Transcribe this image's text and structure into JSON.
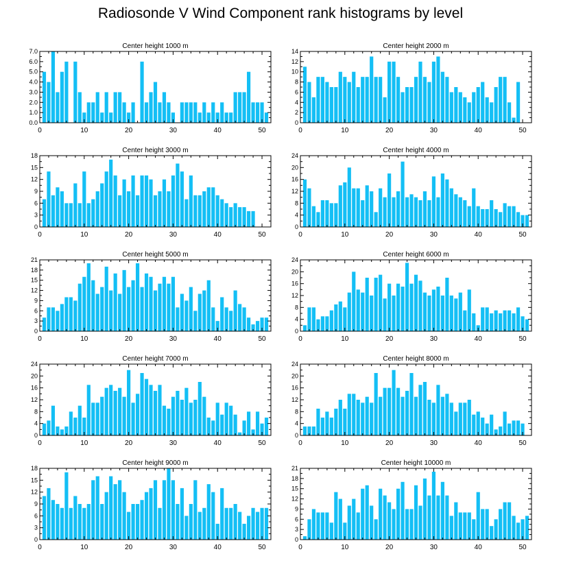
{
  "figure": {
    "title": "Radiosonde V Wind Component rank histograms by level",
    "bar_color": "#14BFF5"
  },
  "chart_data": [
    {
      "type": "bar",
      "title": "Center height 1000 m",
      "x": [
        1,
        2,
        3,
        4,
        5,
        6,
        7,
        8,
        9,
        10,
        11,
        12,
        13,
        14,
        15,
        16,
        17,
        18,
        19,
        20,
        21,
        22,
        23,
        24,
        25,
        26,
        27,
        28,
        29,
        30,
        31,
        32,
        33,
        34,
        35,
        36,
        37,
        38,
        39,
        40,
        41,
        42,
        43,
        44,
        45,
        46,
        47,
        48,
        49,
        50,
        51
      ],
      "values": [
        5,
        4,
        7,
        3,
        5,
        6,
        0,
        6,
        3,
        1,
        2,
        2,
        3,
        1,
        3,
        1,
        3,
        3,
        2,
        1,
        2,
        0,
        6,
        2,
        3,
        4,
        2,
        3,
        2,
        1,
        0,
        2,
        2,
        2,
        2,
        1,
        2,
        1,
        2,
        1,
        2,
        1,
        1,
        3,
        3,
        3,
        5,
        2,
        2,
        2,
        1
      ],
      "xlim": [
        0,
        52
      ],
      "ylim": [
        0,
        7
      ],
      "xticks": [
        0,
        10,
        20,
        30,
        40,
        50
      ],
      "yticks": [
        0,
        1,
        2,
        3,
        4,
        5,
        6,
        7
      ],
      "ytick_labels": [
        "0.0",
        "1.0",
        "2.0",
        "3.0",
        "4.0",
        "5.0",
        "6.0",
        "7.0"
      ]
    },
    {
      "type": "bar",
      "title": "Center height 2000 m",
      "x": [
        1,
        2,
        3,
        4,
        5,
        6,
        7,
        8,
        9,
        10,
        11,
        12,
        13,
        14,
        15,
        16,
        17,
        18,
        19,
        20,
        21,
        22,
        23,
        24,
        25,
        26,
        27,
        28,
        29,
        30,
        31,
        32,
        33,
        34,
        35,
        36,
        37,
        38,
        39,
        40,
        41,
        42,
        43,
        44,
        45,
        46,
        47,
        48,
        49,
        50,
        51
      ],
      "values": [
        11,
        8,
        5,
        9,
        9,
        8,
        7,
        7,
        10,
        9,
        8,
        10,
        7,
        9,
        9,
        13,
        9,
        9,
        5,
        12,
        12,
        9,
        6,
        7,
        7,
        9,
        12,
        9,
        8,
        12,
        13,
        10,
        9,
        6,
        7,
        6,
        5,
        4,
        6,
        7,
        8,
        5,
        4,
        7,
        9,
        9,
        4,
        1,
        8,
        0,
        0
      ],
      "xlim": [
        0,
        52
      ],
      "ylim": [
        0,
        14
      ],
      "xticks": [
        0,
        10,
        20,
        30,
        40,
        50
      ],
      "yticks": [
        0,
        2,
        4,
        6,
        8,
        10,
        12,
        14
      ],
      "ytick_labels": [
        "0",
        "2",
        "4",
        "6",
        "8",
        "10",
        "12",
        "14"
      ]
    },
    {
      "type": "bar",
      "title": "Center height 3000 m",
      "x": [
        1,
        2,
        3,
        4,
        5,
        6,
        7,
        8,
        9,
        10,
        11,
        12,
        13,
        14,
        15,
        16,
        17,
        18,
        19,
        20,
        21,
        22,
        23,
        24,
        25,
        26,
        27,
        28,
        29,
        30,
        31,
        32,
        33,
        34,
        35,
        36,
        37,
        38,
        39,
        40,
        41,
        42,
        43,
        44,
        45,
        46,
        47,
        48,
        49,
        50,
        51
      ],
      "values": [
        7,
        14,
        8,
        10,
        9,
        6,
        6,
        11,
        6,
        14,
        6,
        7,
        9,
        11,
        14,
        17,
        13,
        8,
        12,
        9,
        13,
        8,
        13,
        13,
        12,
        8,
        9,
        12,
        9,
        13,
        16,
        14,
        7,
        13,
        8,
        8,
        9,
        10,
        10,
        8,
        7,
        6,
        5,
        6,
        5,
        5,
        4,
        4,
        0,
        0,
        0
      ],
      "xlim": [
        0,
        52
      ],
      "ylim": [
        0,
        18
      ],
      "xticks": [
        0,
        10,
        20,
        30,
        40,
        50
      ],
      "yticks": [
        0,
        3,
        6,
        9,
        12,
        15,
        18
      ],
      "ytick_labels": [
        "0",
        "3",
        "6",
        "9",
        "12",
        "15",
        "18"
      ]
    },
    {
      "type": "bar",
      "title": "Center height 4000 m",
      "x": [
        1,
        2,
        3,
        4,
        5,
        6,
        7,
        8,
        9,
        10,
        11,
        12,
        13,
        14,
        15,
        16,
        17,
        18,
        19,
        20,
        21,
        22,
        23,
        24,
        25,
        26,
        27,
        28,
        29,
        30,
        31,
        32,
        33,
        34,
        35,
        36,
        37,
        38,
        39,
        40,
        41,
        42,
        43,
        44,
        45,
        46,
        47,
        48,
        49,
        50,
        51
      ],
      "values": [
        16,
        13,
        7,
        5,
        9,
        9,
        8,
        8,
        14,
        15,
        20,
        13,
        13,
        9,
        14,
        12,
        5,
        13,
        10,
        18,
        10,
        12,
        22,
        10,
        11,
        10,
        9,
        12,
        9,
        17,
        10,
        18,
        16,
        13,
        11,
        10,
        9,
        7,
        13,
        7,
        6,
        6,
        9,
        6,
        5,
        8,
        7,
        7,
        5,
        4,
        4
      ],
      "xlim": [
        0,
        52
      ],
      "ylim": [
        0,
        24
      ],
      "xticks": [
        0,
        10,
        20,
        30,
        40,
        50
      ],
      "yticks": [
        0,
        4,
        8,
        12,
        16,
        20,
        24
      ],
      "ytick_labels": [
        "0",
        "4",
        "8",
        "12",
        "16",
        "20",
        "24"
      ]
    },
    {
      "type": "bar",
      "title": "Center height 5000 m",
      "x": [
        1,
        2,
        3,
        4,
        5,
        6,
        7,
        8,
        9,
        10,
        11,
        12,
        13,
        14,
        15,
        16,
        17,
        18,
        19,
        20,
        21,
        22,
        23,
        24,
        25,
        26,
        27,
        28,
        29,
        30,
        31,
        32,
        33,
        34,
        35,
        36,
        37,
        38,
        39,
        40,
        41,
        42,
        43,
        44,
        45,
        46,
        47,
        48,
        49,
        50,
        51
      ],
      "values": [
        4,
        7,
        7,
        6,
        8,
        10,
        10,
        9,
        14,
        16,
        20,
        15,
        11,
        13,
        19,
        12,
        17,
        11,
        18,
        13,
        15,
        20,
        13,
        17,
        16,
        12,
        14,
        16,
        14,
        16,
        7,
        11,
        9,
        13,
        6,
        11,
        12,
        15,
        7,
        3,
        10,
        7,
        6,
        12,
        8,
        7,
        4,
        2,
        3,
        4,
        4
      ],
      "xlim": [
        0,
        52
      ],
      "ylim": [
        0,
        21
      ],
      "xticks": [
        0,
        10,
        20,
        30,
        40,
        50
      ],
      "yticks": [
        0,
        3,
        6,
        9,
        12,
        15,
        18,
        21
      ],
      "ytick_labels": [
        "0",
        "3",
        "6",
        "9",
        "12",
        "15",
        "18",
        "21"
      ]
    },
    {
      "type": "bar",
      "title": "Center height 6000 m",
      "x": [
        1,
        2,
        3,
        4,
        5,
        6,
        7,
        8,
        9,
        10,
        11,
        12,
        13,
        14,
        15,
        16,
        17,
        18,
        19,
        20,
        21,
        22,
        23,
        24,
        25,
        26,
        27,
        28,
        29,
        30,
        31,
        32,
        33,
        34,
        35,
        36,
        37,
        38,
        39,
        40,
        41,
        42,
        43,
        44,
        45,
        46,
        47,
        48,
        49,
        50,
        51
      ],
      "values": [
        2,
        8,
        8,
        4,
        5,
        5,
        7,
        9,
        10,
        8,
        13,
        20,
        14,
        13,
        18,
        12,
        18,
        19,
        11,
        16,
        12,
        16,
        15,
        23,
        16,
        19,
        17,
        13,
        12,
        14,
        15,
        12,
        18,
        12,
        11,
        13,
        7,
        14,
        6,
        2,
        8,
        8,
        6,
        7,
        6,
        7,
        7,
        6,
        8,
        5,
        4
      ],
      "xlim": [
        0,
        52
      ],
      "ylim": [
        0,
        24
      ],
      "xticks": [
        0,
        10,
        20,
        30,
        40,
        50
      ],
      "yticks": [
        0,
        4,
        8,
        12,
        16,
        20,
        24
      ],
      "ytick_labels": [
        "0",
        "4",
        "8",
        "12",
        "16",
        "20",
        "24"
      ]
    },
    {
      "type": "bar",
      "title": "Center height 7000 m",
      "x": [
        1,
        2,
        3,
        4,
        5,
        6,
        7,
        8,
        9,
        10,
        11,
        12,
        13,
        14,
        15,
        16,
        17,
        18,
        19,
        20,
        21,
        22,
        23,
        24,
        25,
        26,
        27,
        28,
        29,
        30,
        31,
        32,
        33,
        34,
        35,
        36,
        37,
        38,
        39,
        40,
        41,
        42,
        43,
        44,
        45,
        46,
        47,
        48,
        49,
        50,
        51
      ],
      "values": [
        4,
        5,
        10,
        3,
        2,
        3,
        8,
        6,
        10,
        6,
        17,
        11,
        11,
        13,
        16,
        17,
        15,
        16,
        13,
        22,
        11,
        14,
        21,
        19,
        17,
        15,
        17,
        10,
        9,
        13,
        15,
        12,
        16,
        11,
        12,
        18,
        13,
        6,
        5,
        11,
        7,
        11,
        10,
        7,
        1,
        5,
        8,
        2,
        8,
        4,
        6
      ],
      "xlim": [
        0,
        52
      ],
      "ylim": [
        0,
        24
      ],
      "xticks": [
        0,
        10,
        20,
        30,
        40,
        50
      ],
      "yticks": [
        0,
        4,
        8,
        12,
        16,
        20,
        24
      ],
      "ytick_labels": [
        "0",
        "4",
        "8",
        "12",
        "16",
        "20",
        "24"
      ]
    },
    {
      "type": "bar",
      "title": "Center height 8000 m",
      "x": [
        1,
        2,
        3,
        4,
        5,
        6,
        7,
        8,
        9,
        10,
        11,
        12,
        13,
        14,
        15,
        16,
        17,
        18,
        19,
        20,
        21,
        22,
        23,
        24,
        25,
        26,
        27,
        28,
        29,
        30,
        31,
        32,
        33,
        34,
        35,
        36,
        37,
        38,
        39,
        40,
        41,
        42,
        43,
        44,
        45,
        46,
        47,
        48,
        49,
        50,
        51
      ],
      "values": [
        3,
        3,
        3,
        9,
        6,
        8,
        6,
        9,
        12,
        9,
        14,
        14,
        12,
        11,
        13,
        11,
        21,
        13,
        16,
        16,
        22,
        16,
        13,
        15,
        21,
        13,
        17,
        18,
        12,
        11,
        17,
        13,
        14,
        11,
        8,
        11,
        11,
        12,
        7,
        8,
        6,
        4,
        7,
        2,
        3,
        8,
        4,
        5,
        5,
        4,
        0
      ],
      "xlim": [
        0,
        52
      ],
      "ylim": [
        0,
        24
      ],
      "xticks": [
        0,
        10,
        20,
        30,
        40,
        50
      ],
      "yticks": [
        0,
        4,
        8,
        12,
        16,
        20,
        24
      ],
      "ytick_labels": [
        "0",
        "4",
        "8",
        "12",
        "16",
        "20",
        "24"
      ]
    },
    {
      "type": "bar",
      "title": "Center height 9000 m",
      "x": [
        1,
        2,
        3,
        4,
        5,
        6,
        7,
        8,
        9,
        10,
        11,
        12,
        13,
        14,
        15,
        16,
        17,
        18,
        19,
        20,
        21,
        22,
        23,
        24,
        25,
        26,
        27,
        28,
        29,
        30,
        31,
        32,
        33,
        34,
        35,
        36,
        37,
        38,
        39,
        40,
        41,
        42,
        43,
        44,
        45,
        46,
        47,
        48,
        49,
        50,
        51
      ],
      "values": [
        11,
        13,
        10,
        9,
        8,
        17,
        8,
        11,
        9,
        8,
        9,
        15,
        16,
        9,
        12,
        16,
        14,
        15,
        12,
        7,
        9,
        9,
        10,
        12,
        13,
        15,
        8,
        15,
        18,
        15,
        9,
        13,
        6,
        9,
        15,
        7,
        8,
        14,
        12,
        4,
        13,
        8,
        8,
        9,
        7,
        4,
        6,
        8,
        7,
        8,
        8
      ],
      "xlim": [
        0,
        52
      ],
      "ylim": [
        0,
        18
      ],
      "xticks": [
        0,
        10,
        20,
        30,
        40,
        50
      ],
      "yticks": [
        0,
        3,
        6,
        9,
        12,
        15,
        18
      ],
      "ytick_labels": [
        "0",
        "3",
        "6",
        "9",
        "12",
        "15",
        "18"
      ]
    },
    {
      "type": "bar",
      "title": "Center height 10000 m",
      "x": [
        1,
        2,
        3,
        4,
        5,
        6,
        7,
        8,
        9,
        10,
        11,
        12,
        13,
        14,
        15,
        16,
        17,
        18,
        19,
        20,
        21,
        22,
        23,
        24,
        25,
        26,
        27,
        28,
        29,
        30,
        31,
        32,
        33,
        34,
        35,
        36,
        37,
        38,
        39,
        40,
        41,
        42,
        43,
        44,
        45,
        46,
        47,
        48,
        49,
        50,
        51
      ],
      "values": [
        1,
        6,
        9,
        8,
        8,
        8,
        5,
        14,
        12,
        5,
        10,
        12,
        8,
        15,
        16,
        10,
        6,
        15,
        13,
        11,
        9,
        15,
        17,
        9,
        9,
        16,
        10,
        18,
        13,
        20,
        13,
        17,
        13,
        7,
        11,
        8,
        8,
        8,
        6,
        14,
        9,
        9,
        4,
        6,
        9,
        11,
        11,
        7,
        5,
        6,
        7
      ],
      "xlim": [
        0,
        52
      ],
      "ylim": [
        0,
        21
      ],
      "xticks": [
        0,
        10,
        20,
        30,
        40,
        50
      ],
      "yticks": [
        0,
        3,
        6,
        9,
        12,
        15,
        18,
        21
      ],
      "ytick_labels": [
        "0",
        "3",
        "6",
        "9",
        "12",
        "15",
        "18",
        "21"
      ]
    }
  ]
}
